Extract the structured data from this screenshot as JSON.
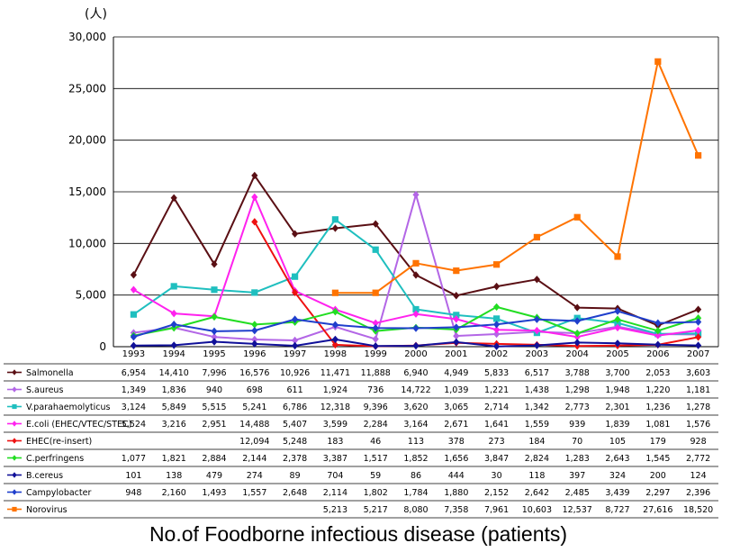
{
  "chart_data": {
    "type": "line",
    "unit_label": "(人)",
    "caption": "No.of Foodborne infectious disease (patients)",
    "x": [
      "1993",
      "1994",
      "1995",
      "1996",
      "1997",
      "1998",
      "1999",
      "2000",
      "2001",
      "2002",
      "2003",
      "2004",
      "2005",
      "2006",
      "2007"
    ],
    "ylim": [
      0,
      30000
    ],
    "yticks": [
      "0",
      "5,000",
      "10,000",
      "15,000",
      "20,000",
      "25,000",
      "30,000"
    ],
    "grid": true,
    "legend": "data table below chart",
    "series": [
      {
        "name": "Salmonella",
        "color": "#5a0f14",
        "marker": "diamond",
        "values": [
          6954,
          14410,
          7996,
          16576,
          10926,
          11471,
          11888,
          6940,
          4949,
          5833,
          6517,
          3788,
          3700,
          2053,
          3603
        ],
        "labels": [
          "6,954",
          "14,410",
          "7,996",
          "16,576",
          "10,926",
          "11,471",
          "11,888",
          "6,940",
          "4,949",
          "5,833",
          "6,517",
          "3,788",
          "3,700",
          "2,053",
          "3,603"
        ]
      },
      {
        "name": "S.aureus",
        "color": "#b366e6",
        "marker": "diamond",
        "values": [
          1349,
          1836,
          940,
          698,
          611,
          1924,
          736,
          14722,
          1039,
          1221,
          1438,
          1298,
          1948,
          1220,
          1181
        ],
        "labels": [
          "1,349",
          "1,836",
          "940",
          "698",
          "611",
          "1,924",
          "736",
          "14,722",
          "1,039",
          "1,221",
          "1,438",
          "1,298",
          "1,948",
          "1,220",
          "1,181"
        ]
      },
      {
        "name": "V.parahaemolyticus",
        "color": "#1fbfbf",
        "marker": "square",
        "values": [
          3124,
          5849,
          5515,
          5241,
          6786,
          12318,
          9396,
          3620,
          3065,
          2714,
          1342,
          2773,
          2301,
          1236,
          1278
        ],
        "labels": [
          "3,124",
          "5,849",
          "5,515",
          "5,241",
          "6,786",
          "12,318",
          "9,396",
          "3,620",
          "3,065",
          "2,714",
          "1,342",
          "2,773",
          "2,301",
          "1,236",
          "1,278"
        ]
      },
      {
        "name": "E.coli (EHEC/VTEC/STEC)",
        "color": "#ff22ee",
        "marker": "diamond",
        "values": [
          5524,
          3216,
          2951,
          14488,
          5407,
          3599,
          2284,
          3164,
          2671,
          1641,
          1559,
          939,
          1839,
          1081,
          1576
        ],
        "labels": [
          "5,524",
          "3,216",
          "2,951",
          "14,488",
          "5,407",
          "3,599",
          "2,284",
          "3,164",
          "2,671",
          "1,641",
          "1,559",
          "939",
          "1,839",
          "1,081",
          "1,576"
        ]
      },
      {
        "name": "EHEC(re-insert)",
        "color": "#ee1111",
        "marker": "diamond",
        "values": [
          null,
          null,
          null,
          12094,
          5248,
          183,
          46,
          113,
          378,
          273,
          184,
          70,
          105,
          179,
          928
        ],
        "labels": [
          "",
          "",
          "",
          "12,094",
          "5,248",
          "183",
          "46",
          "113",
          "378",
          "273",
          "184",
          "70",
          "105",
          "179",
          "928"
        ]
      },
      {
        "name": "C.perfringens",
        "color": "#22dd22",
        "marker": "diamond",
        "values": [
          1077,
          1821,
          2884,
          2144,
          2378,
          3387,
          1517,
          1852,
          1656,
          3847,
          2824,
          1283,
          2643,
          1545,
          2772
        ],
        "labels": [
          "1,077",
          "1,821",
          "2,884",
          "2,144",
          "2,378",
          "3,387",
          "1,517",
          "1,852",
          "1,656",
          "3,847",
          "2,824",
          "1,283",
          "2,643",
          "1,545",
          "2,772"
        ]
      },
      {
        "name": "B.cereus",
        "color": "#101099",
        "marker": "diamond",
        "values": [
          101,
          138,
          479,
          274,
          89,
          704,
          59,
          86,
          444,
          30,
          118,
          397,
          324,
          200,
          124
        ],
        "labels": [
          "101",
          "138",
          "479",
          "274",
          "89",
          "704",
          "59",
          "86",
          "444",
          "30",
          "118",
          "397",
          "324",
          "200",
          "124"
        ]
      },
      {
        "name": "Campylobacter",
        "color": "#1f3fcc",
        "marker": "diamond",
        "values": [
          948,
          2160,
          1493,
          1557,
          2648,
          2114,
          1802,
          1784,
          1880,
          2152,
          2642,
          2485,
          3439,
          2297,
          2396
        ],
        "labels": [
          "948",
          "2,160",
          "1,493",
          "1,557",
          "2,648",
          "2,114",
          "1,802",
          "1,784",
          "1,880",
          "2,152",
          "2,642",
          "2,485",
          "3,439",
          "2,297",
          "2,396"
        ]
      },
      {
        "name": "Norovirus",
        "color": "#ff7300",
        "marker": "square",
        "values": [
          null,
          null,
          null,
          null,
          null,
          5213,
          5217,
          8080,
          7358,
          7961,
          10603,
          12537,
          8727,
          27616,
          18520
        ],
        "labels": [
          "",
          "",
          "",
          "",
          "",
          "5,213",
          "5,217",
          "8,080",
          "7,358",
          "7,961",
          "10,603",
          "12,537",
          "8,727",
          "27,616",
          "18,520"
        ]
      }
    ]
  }
}
